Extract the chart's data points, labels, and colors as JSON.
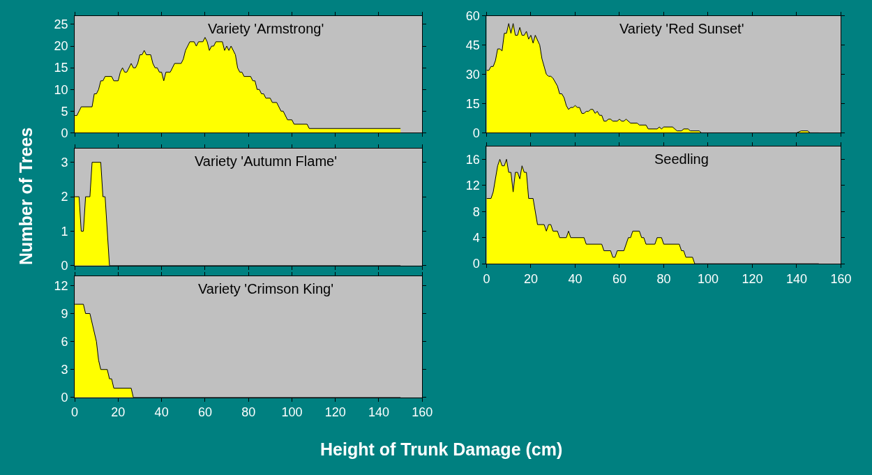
{
  "chart_data": [
    {
      "type": "area",
      "title": "Variety 'Armstrong'",
      "xlim": [
        0,
        160
      ],
      "xticks": [
        0,
        20,
        40,
        60,
        80,
        100,
        120,
        140,
        160
      ],
      "ylim": [
        0,
        27
      ],
      "yticks": [
        0,
        5,
        10,
        15,
        20,
        25
      ],
      "tick_labels": "y",
      "grid": false,
      "series": [
        {
          "color": "#ffff00",
          "x": [
            0,
            1,
            3,
            8,
            9,
            10,
            11,
            12,
            13,
            14,
            17,
            18,
            20,
            21,
            22,
            23,
            24,
            26,
            27,
            28,
            29,
            30,
            31,
            32,
            33,
            35,
            36,
            37,
            38,
            39,
            40,
            41,
            42,
            44,
            46,
            49,
            50,
            51,
            53,
            55,
            56,
            57,
            59,
            60,
            61,
            62,
            63,
            64,
            65,
            68,
            69,
            70,
            71,
            72,
            74,
            75,
            76,
            77,
            78,
            81,
            82,
            83,
            84,
            85,
            86,
            87,
            88,
            90,
            91,
            93,
            95,
            96,
            98,
            100,
            101,
            107,
            108,
            150
          ],
          "values": [
            4,
            4,
            6,
            6,
            9,
            9,
            10,
            12,
            12,
            13,
            13,
            12,
            12,
            14,
            15,
            14,
            14,
            16,
            15,
            15,
            16,
            18,
            18,
            19,
            18,
            18,
            16,
            15,
            15,
            14,
            14,
            12,
            14,
            14,
            16,
            16,
            17,
            19,
            21,
            21,
            20,
            21,
            21,
            22,
            21,
            19,
            20,
            20,
            21,
            21,
            19,
            20,
            19,
            20,
            18,
            15,
            14,
            14,
            13,
            13,
            12,
            12,
            10,
            10,
            9,
            9,
            8,
            8,
            7,
            7,
            5,
            5,
            3,
            3,
            2,
            2,
            1,
            1
          ]
        }
      ]
    },
    {
      "type": "area",
      "title": "Variety 'Red Sunset'",
      "xlim": [
        0,
        160
      ],
      "xticks": [
        0,
        20,
        40,
        60,
        80,
        100,
        120,
        140,
        160
      ],
      "ylim": [
        0,
        60
      ],
      "yticks": [
        0,
        15,
        30,
        45,
        60
      ],
      "tick_labels": "y",
      "grid": false,
      "series": [
        {
          "color": "#ffff00",
          "x": [
            0,
            1,
            2,
            3,
            4,
            5,
            6,
            7,
            8,
            9,
            10,
            11,
            12,
            13,
            14,
            15,
            16,
            17,
            18,
            19,
            20,
            21,
            22,
            24,
            25,
            27,
            28,
            29,
            30,
            32,
            33,
            34,
            35,
            36,
            37,
            38,
            39,
            40,
            41,
            42,
            43,
            44,
            45,
            46,
            47,
            48,
            49,
            50,
            51,
            52,
            53,
            54,
            55,
            56,
            57,
            59,
            60,
            61,
            62,
            63,
            65,
            68,
            69,
            72,
            73,
            77,
            78,
            79,
            80,
            84,
            86,
            88,
            89,
            91,
            92,
            96,
            97,
            140,
            142,
            145,
            146,
            150
          ],
          "values": [
            32,
            32,
            34,
            34,
            37,
            43,
            43,
            42,
            51,
            51,
            56,
            51,
            56,
            50,
            50,
            54,
            50,
            50,
            52,
            48,
            50,
            46,
            50,
            45,
            38,
            30,
            29,
            29,
            28,
            24,
            20,
            20,
            18,
            14,
            12,
            13,
            13,
            14,
            13,
            13,
            10,
            10,
            11,
            11,
            12,
            12,
            10,
            11,
            9,
            9,
            6,
            6,
            7,
            7,
            6,
            6,
            7,
            6,
            6,
            7,
            5,
            5,
            4,
            4,
            2,
            2,
            3,
            2,
            3,
            3,
            1,
            1,
            2,
            2,
            1,
            1,
            0,
            0,
            1,
            1,
            0,
            0
          ]
        }
      ]
    },
    {
      "type": "area",
      "title": "Variety 'Autumn Flame'",
      "ylabel": "Number of Trees",
      "xlim": [
        0,
        160
      ],
      "xticks": [
        0,
        20,
        40,
        60,
        80,
        100,
        120,
        140,
        160
      ],
      "ylim": [
        0,
        3.4
      ],
      "yticks": [
        0,
        1,
        2,
        3
      ],
      "tick_labels": "y",
      "grid": false,
      "series": [
        {
          "color": "#ffff00",
          "x": [
            0,
            2,
            3,
            4,
            5,
            7,
            8,
            12,
            13,
            14,
            16,
            150
          ],
          "values": [
            2,
            2,
            1,
            1,
            2,
            2,
            3,
            3,
            2,
            2,
            0,
            0
          ]
        }
      ]
    },
    {
      "type": "area",
      "title": "Seedling",
      "xlim": [
        0,
        160
      ],
      "xticks": [
        0,
        20,
        40,
        60,
        80,
        100,
        120,
        140,
        160
      ],
      "ylim": [
        0,
        18
      ],
      "yticks": [
        0,
        4,
        8,
        12,
        16
      ],
      "grid": false,
      "series": [
        {
          "color": "#ffff00",
          "x": [
            0,
            2,
            3,
            5,
            6,
            7,
            8,
            9,
            10,
            11,
            12,
            13,
            14,
            15,
            16,
            17,
            18,
            19,
            21,
            23,
            26,
            27,
            28,
            29,
            30,
            32,
            33,
            36,
            37,
            38,
            44,
            45,
            52,
            53,
            56,
            57,
            58,
            59,
            62,
            64,
            65,
            66,
            69,
            70,
            71,
            72,
            76,
            77,
            79,
            80,
            87,
            88,
            89,
            90,
            93,
            94,
            150
          ],
          "values": [
            10,
            10,
            11,
            15,
            16,
            15,
            15,
            16,
            14,
            14,
            11,
            14,
            14,
            13,
            15,
            14,
            14,
            10,
            10,
            6,
            6,
            5,
            6,
            6,
            5,
            5,
            4,
            4,
            5,
            4,
            4,
            3,
            3,
            2,
            2,
            1,
            1,
            2,
            2,
            4,
            4,
            5,
            5,
            4,
            4,
            3,
            3,
            4,
            4,
            3,
            3,
            2,
            2,
            1,
            1,
            0,
            0
          ]
        }
      ]
    },
    {
      "type": "area",
      "title": "Variety 'Crimson King'",
      "xlabel": "Height of Trunk Damage (cm)",
      "xlim": [
        0,
        160
      ],
      "xticks": [
        0,
        20,
        40,
        60,
        80,
        100,
        120,
        140,
        160
      ],
      "ylim": [
        0,
        13
      ],
      "yticks": [
        0,
        3,
        6,
        9,
        12
      ],
      "grid": false,
      "series": [
        {
          "color": "#ffff00",
          "x": [
            0,
            4,
            5,
            7,
            10,
            11,
            12,
            15,
            16,
            17,
            18,
            26,
            27,
            150
          ],
          "values": [
            10,
            10,
            9,
            9,
            6,
            4,
            3,
            3,
            2,
            2,
            1,
            1,
            0,
            0
          ]
        }
      ]
    }
  ]
}
